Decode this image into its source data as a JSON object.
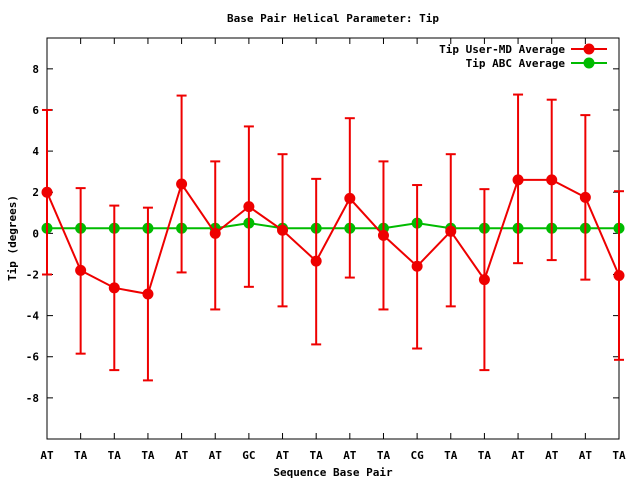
{
  "chart_data": {
    "type": "line",
    "title": "Base Pair Helical Parameter: Tip",
    "xlabel": "Sequence Base Pair",
    "ylabel": "Tip (degrees)",
    "categories": [
      "AT",
      "TA",
      "TA",
      "TA",
      "AT",
      "AT",
      "GC",
      "AT",
      "TA",
      "AT",
      "TA",
      "CG",
      "TA",
      "TA",
      "AT",
      "AT",
      "AT",
      "TA"
    ],
    "ylim": [
      -10,
      9.5
    ],
    "yticks": [
      -8,
      -6,
      -4,
      -2,
      0,
      2,
      4,
      6,
      8
    ],
    "legend_position": "top-right",
    "grid": false,
    "series": [
      {
        "name": "Tip User-MD Average",
        "color": "#ee0000",
        "values": [
          2.0,
          -1.8,
          -2.65,
          -2.95,
          2.4,
          0.0,
          1.3,
          0.15,
          -1.35,
          1.7,
          -0.1,
          -1.6,
          0.1,
          -2.25,
          2.6,
          2.6,
          1.75,
          -2.05
        ],
        "error_low": [
          -2.0,
          -5.85,
          -6.65,
          -7.15,
          -1.9,
          -3.7,
          -2.6,
          -3.55,
          -5.4,
          -2.15,
          -3.7,
          -5.6,
          -3.55,
          -6.65,
          -1.45,
          -1.3,
          -2.25,
          -6.15
        ],
        "error_high": [
          6.0,
          2.2,
          1.35,
          1.25,
          6.7,
          3.5,
          5.2,
          3.85,
          2.65,
          5.6,
          3.5,
          2.35,
          3.85,
          2.15,
          6.75,
          6.5,
          5.75,
          2.05
        ]
      },
      {
        "name": "Tip ABC Average",
        "color": "#00bb00",
        "values": [
          0.25,
          0.25,
          0.25,
          0.25,
          0.25,
          0.25,
          0.5,
          0.25,
          0.25,
          0.25,
          0.25,
          0.5,
          0.25,
          0.25,
          0.25,
          0.25,
          0.25,
          0.25
        ]
      }
    ]
  }
}
